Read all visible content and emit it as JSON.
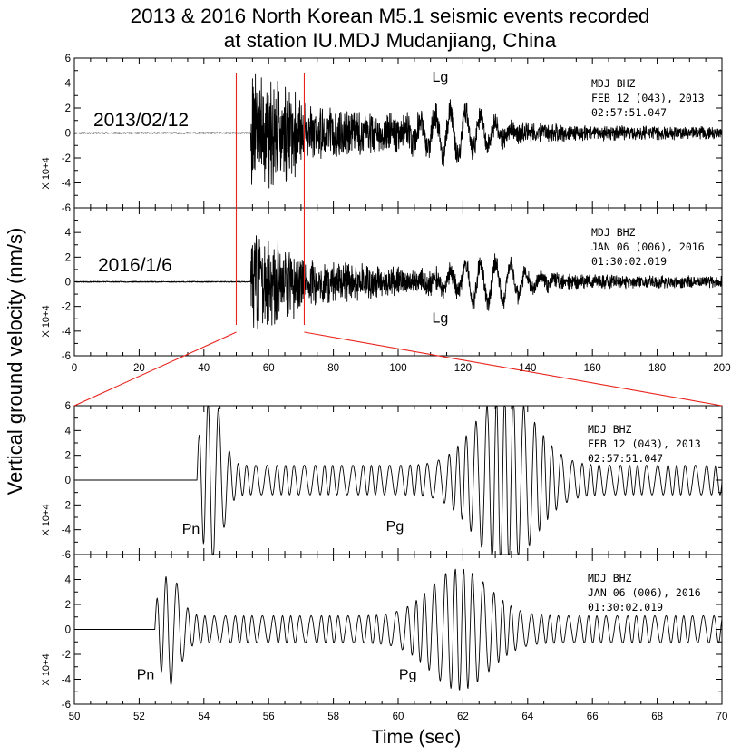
{
  "figure": {
    "title_line1": "2013 & 2016 North Korean M5.1 seismic events recorded",
    "title_line2": "at station IU.MDJ Mudanjiang, China",
    "ylabel": "Vertical ground velocity (nm/s)",
    "xlabel": "Time (sec)",
    "multiplier_label": "X 10+4",
    "highlight_color": "#e8231c",
    "trace_color": "#000000"
  },
  "chart_data": [
    {
      "type": "line",
      "panel": "overview-2013",
      "date_label": "2013/02/12",
      "phase_labels": [
        {
          "text": "Lg",
          "x": 113,
          "y": 4.1
        }
      ],
      "meta": [
        "MDJ   BHZ",
        "FEB 12 (043), 2013",
        "02:57:51.047"
      ],
      "xlim": [
        0,
        200
      ],
      "ylim": [
        -6,
        6
      ],
      "yticks": [
        "6",
        "4",
        "2",
        "0",
        "-2",
        "-4",
        "-6"
      ],
      "x_tick_labels": [],
      "onset": 54.5,
      "amp": 2.6,
      "duration": 146,
      "lg_time": 117,
      "lg_amp": 1.8,
      "seed": 11,
      "red_markers": [
        50,
        71
      ]
    },
    {
      "type": "line",
      "panel": "overview-2016",
      "date_label": "2016/1/6",
      "phase_labels": [
        {
          "text": "Lg",
          "x": 113,
          "y": -3.3
        }
      ],
      "meta": [
        "MDJ   BHZ",
        "JAN 06 (006), 2016",
        "01:30:02.019"
      ],
      "xlim": [
        0,
        200
      ],
      "ylim": [
        -6,
        6
      ],
      "yticks": [
        "",
        "4",
        "2",
        "0",
        "-2",
        "-4",
        "-6"
      ],
      "x_tick_labels": [
        "0",
        "20",
        "40",
        "60",
        "80",
        "100",
        "120",
        "140",
        "160",
        "180",
        "200"
      ],
      "onset": 54.5,
      "amp": 2.0,
      "duration": 146,
      "lg_time": 128,
      "lg_amp": 1.7,
      "seed": 23,
      "red_markers": [
        50,
        71
      ]
    },
    {
      "type": "line",
      "panel": "zoom-2013",
      "phase_labels": [
        {
          "text": "Pn",
          "x": 53.6,
          "y": -4.3
        },
        {
          "text": "Pg",
          "x": 59.9,
          "y": -4.1
        }
      ],
      "meta": [
        "MDJ   BHZ",
        "FEB 12 (043), 2013",
        "02:57:51.047"
      ],
      "xlim": [
        50,
        70
      ],
      "ylim": [
        -6,
        6
      ],
      "yticks": [
        "6",
        "4",
        "2",
        "0",
        "-2",
        "-4",
        "-6"
      ],
      "x_tick_labels": [],
      "onset": 53.8,
      "amp": 1.2,
      "duration": 16.2,
      "seed": 37,
      "pn_peak": 5.8,
      "pg_time": 63.3,
      "pg_amp": 5.9
    },
    {
      "type": "line",
      "panel": "zoom-2016",
      "phase_labels": [
        {
          "text": "Pn",
          "x": 52.2,
          "y": -4.0
        },
        {
          "text": "Pg",
          "x": 60.3,
          "y": -4.0
        }
      ],
      "meta": [
        "MDJ   BHZ",
        "JAN 06 (006), 2016",
        "01:30:02.019"
      ],
      "xlim": [
        50,
        70
      ],
      "ylim": [
        -6,
        6
      ],
      "yticks": [
        "",
        "4",
        "2",
        "0",
        "-2",
        "-4",
        "-6"
      ],
      "x_tick_labels": [
        "50",
        "52",
        "54",
        "56",
        "58",
        "60",
        "62",
        "64",
        "66",
        "68",
        "70"
      ],
      "onset": 52.5,
      "amp": 1.1,
      "duration": 17.5,
      "seed": 53,
      "pn_peak": 3.4,
      "pg_time": 61.9,
      "pg_amp": 3.8
    }
  ]
}
